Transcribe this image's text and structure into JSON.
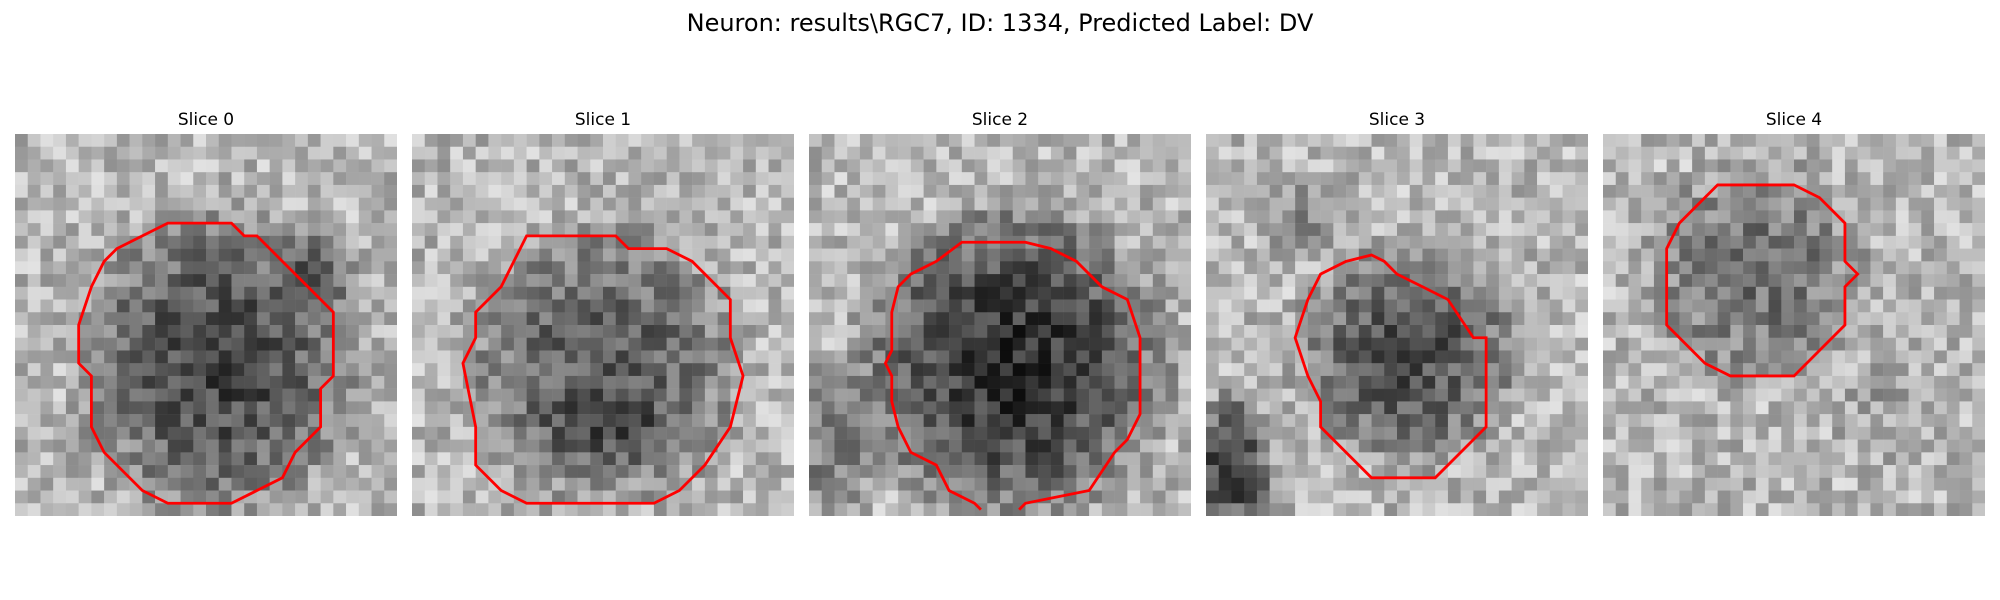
{
  "figure": {
    "title": "Neuron: results\\RGC7, ID: 1334, Predicted Label: DV"
  },
  "panels": [
    {
      "label": "Slice 0"
    },
    {
      "label": "Slice 1"
    },
    {
      "label": "Slice 2"
    },
    {
      "label": "Slice 3"
    },
    {
      "label": "Slice 4"
    }
  ],
  "colors": {
    "contour": "#ff0000",
    "background": "#ffffff"
  }
}
